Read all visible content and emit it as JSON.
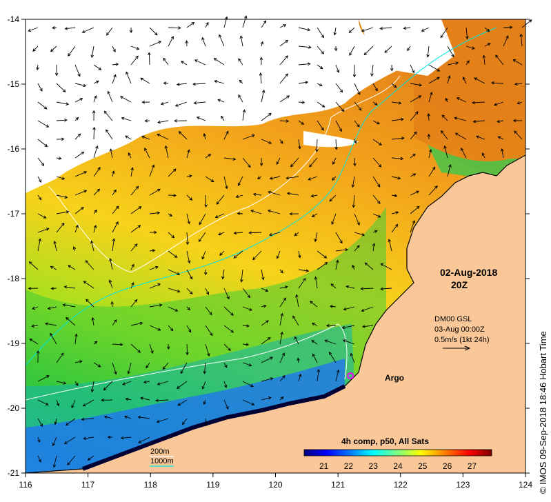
{
  "map": {
    "lon_ticks": [
      "116",
      "117",
      "118",
      "119",
      "120",
      "121",
      "122",
      "123",
      "124"
    ],
    "lat_ticks": [
      "-14",
      "-15",
      "-16",
      "-17",
      "-18",
      "-19",
      "-20",
      "-21"
    ],
    "lon_range": [
      116,
      124
    ],
    "lat_range": [
      -21,
      -14
    ],
    "date_label": "02-Aug-2018",
    "time_label": "20Z",
    "current_info": {
      "line1": "DM00 GSL",
      "line2": "03-Aug 00:00Z",
      "line3": "0.5m/s (1kt 24h)"
    },
    "argo_label": "Argo",
    "argo_position": {
      "lon": 121.2,
      "lat": -19.5
    },
    "colorbar": {
      "title": "4h comp, p50, All Sats",
      "ticks": [
        "21",
        "22",
        "23",
        "24",
        "25",
        "26",
        "27"
      ],
      "range": [
        20.2,
        27.8
      ],
      "colors": [
        "#00007f",
        "#0000ff",
        "#007fff",
        "#00ffff",
        "#7fff7f",
        "#ffff00",
        "#ff7f00",
        "#ff0000",
        "#7f0000"
      ]
    },
    "legend": {
      "contour_200": "200m",
      "contour_1000": "1000m",
      "color_200": "#ffffff",
      "color_1000": "#00e5e5"
    },
    "credit": "© IMOS 09-Sep-2018 18:46 Hobart Time",
    "land_color": "#fac898"
  }
}
